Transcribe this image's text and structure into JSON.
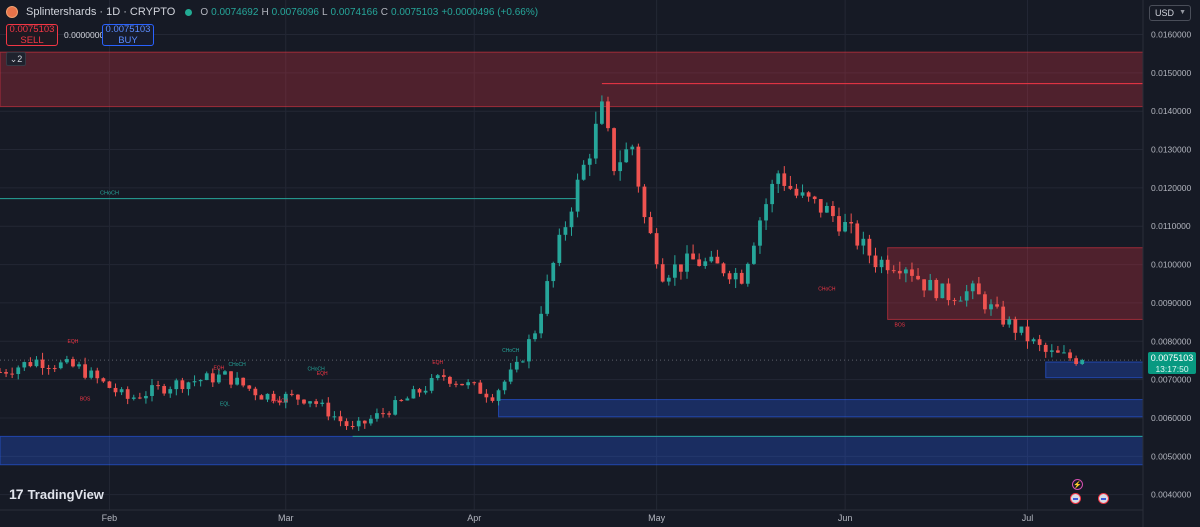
{
  "header": {
    "symbol": "Splintershards · 1D · CRYPTO",
    "ohlc": [
      {
        "key": "O",
        "value": "0.0074692"
      },
      {
        "key": "H",
        "value": "0.0076096"
      },
      {
        "key": "L",
        "value": "0.0074166"
      },
      {
        "key": "C",
        "value": "0.0075103"
      }
    ],
    "change": "+0.0000496 (+0.66%)",
    "sell_price": "0.0075103",
    "sell_label": "SELL",
    "spread": "0.0000000",
    "buy_price": "0.0075103",
    "buy_label": "BUY",
    "indicator_count": "2",
    "currency": "USD"
  },
  "branding": {
    "logo_text": "TradingView"
  },
  "last_price": {
    "value": "0.0075103",
    "countdown": "13:17:50"
  },
  "icons": [
    "tradingview-logo-icon",
    "dropdown-caret-icon",
    "collapse-chevron-icon",
    "live-status-dot-icon",
    "lightning-event-icon",
    "us-flag-event-icon"
  ],
  "colors": {
    "background": "#161a25",
    "up": "#26a69a",
    "down": "#ef5350",
    "supply_zone": "#f23645",
    "demand_zone": "#2962ff",
    "last_price_tag": "#089981"
  },
  "chart_data": {
    "type": "candlestick",
    "timeframe": "1D",
    "y_axis": {
      "ticks": [
        "0.0040000",
        "0.0050000",
        "0.0060000",
        "0.0070000",
        "0.0080000",
        "0.0090000",
        "0.0100000",
        "0.0110000",
        "0.0120000",
        "0.0130000",
        "0.0140000",
        "0.0150000",
        "0.0160000"
      ],
      "ylim": [
        0.0036,
        0.0169
      ],
      "position": "right"
    },
    "x_axis": {
      "ticks": [
        {
          "label": "Feb",
          "date": "2024-02-01"
        },
        {
          "label": "Mar",
          "date": "2024-03-01"
        },
        {
          "label": "Apr",
          "date": "2024-04-01"
        },
        {
          "label": "May",
          "date": "2024-05-01"
        },
        {
          "label": "Jun",
          "date": "2024-06-01"
        },
        {
          "label": "Jul",
          "date": "2024-07-01"
        }
      ],
      "range": [
        "2024-01-14",
        "2024-07-20"
      ]
    },
    "grid": true,
    "legend": "none",
    "anchors": [
      {
        "date": "2024-01-14",
        "close": 0.0072
      },
      {
        "date": "2024-01-20",
        "close": 0.0075
      },
      {
        "date": "2024-01-27",
        "close": 0.0073
      },
      {
        "date": "2024-02-04",
        "close": 0.0065
      },
      {
        "date": "2024-02-12",
        "close": 0.0069
      },
      {
        "date": "2024-02-20",
        "close": 0.0071
      },
      {
        "date": "2024-02-26",
        "close": 0.0066
      },
      {
        "date": "2024-03-05",
        "close": 0.0065
      },
      {
        "date": "2024-03-12",
        "close": 0.0057
      },
      {
        "date": "2024-03-20",
        "close": 0.0064
      },
      {
        "date": "2024-03-27",
        "close": 0.0071
      },
      {
        "date": "2024-04-04",
        "close": 0.0066
      },
      {
        "date": "2024-04-08",
        "close": 0.0073
      },
      {
        "date": "2024-04-11",
        "close": 0.0083
      },
      {
        "date": "2024-04-14",
        "close": 0.01
      },
      {
        "date": "2024-04-17",
        "close": 0.0116
      },
      {
        "date": "2024-04-20",
        "close": 0.013
      },
      {
        "date": "2024-04-22",
        "close": 0.014
      },
      {
        "date": "2024-04-24",
        "close": 0.0126
      },
      {
        "date": "2024-04-27",
        "close": 0.0131
      },
      {
        "date": "2024-04-29",
        "close": 0.0112
      },
      {
        "date": "2024-05-02",
        "close": 0.0098
      },
      {
        "date": "2024-05-07",
        "close": 0.0101
      },
      {
        "date": "2024-05-12",
        "close": 0.0099
      },
      {
        "date": "2024-05-15",
        "close": 0.0097
      },
      {
        "date": "2024-05-18",
        "close": 0.0112
      },
      {
        "date": "2024-05-21",
        "close": 0.0124
      },
      {
        "date": "2024-05-24",
        "close": 0.0118
      },
      {
        "date": "2024-05-29",
        "close": 0.0114
      },
      {
        "date": "2024-06-01",
        "close": 0.011
      },
      {
        "date": "2024-06-06",
        "close": 0.0101
      },
      {
        "date": "2024-06-11",
        "close": 0.01
      },
      {
        "date": "2024-06-14",
        "close": 0.0095
      },
      {
        "date": "2024-06-18",
        "close": 0.0092
      },
      {
        "date": "2024-06-22",
        "close": 0.0093
      },
      {
        "date": "2024-06-26",
        "close": 0.0087
      },
      {
        "date": "2024-06-30",
        "close": 0.0082
      },
      {
        "date": "2024-07-04",
        "close": 0.0077
      },
      {
        "date": "2024-07-07",
        "close": 0.0076
      },
      {
        "date": "2024-07-10",
        "close": 0.00751
      }
    ],
    "zones": [
      {
        "kind": "supply",
        "start": "2024-01-14",
        "end": "2024-07-20",
        "low": 0.01412,
        "high": 0.01554
      },
      {
        "kind": "supply",
        "start": "2024-06-08",
        "end": "2024-07-20",
        "low": 0.00857,
        "high": 0.01044
      },
      {
        "kind": "demand",
        "start": "2024-04-05",
        "end": "2024-07-20",
        "low": 0.00603,
        "high": 0.00648
      },
      {
        "kind": "demand",
        "start": "2024-01-14",
        "end": "2024-07-20",
        "low": 0.00478,
        "high": 0.00552
      },
      {
        "kind": "demand",
        "start": "2024-07-04",
        "end": "2024-07-20",
        "low": 0.00705,
        "high": 0.00746
      }
    ],
    "levels": [
      {
        "price": 0.01172,
        "start": "2024-01-14",
        "end": "2024-04-18",
        "label": "CHoCH",
        "color": "#26a69a"
      },
      {
        "price": 0.01472,
        "start": "2024-04-22",
        "end": "2024-07-20",
        "label": "",
        "color": "#f23645"
      },
      {
        "price": 0.00552,
        "start": "2024-03-12",
        "end": "2024-07-20",
        "label": "",
        "color": "#26a69a"
      },
      {
        "price": 0.00751,
        "start": "2024-01-14",
        "end": "2024-07-20",
        "label": "",
        "color": "#5d606b",
        "dotted": true
      }
    ],
    "annotations": [
      {
        "text": "EQH",
        "date": "2024-01-26",
        "price": 0.00796,
        "color": "#f23645"
      },
      {
        "text": "BOS",
        "date": "2024-01-28",
        "price": 0.00646,
        "color": "#f23645"
      },
      {
        "text": "EQH",
        "date": "2024-02-19",
        "price": 0.00727,
        "color": "#f23645"
      },
      {
        "text": "CHoCH",
        "date": "2024-02-22",
        "price": 0.00735,
        "color": "#26a69a"
      },
      {
        "text": "EQL",
        "date": "2024-02-20",
        "price": 0.00632,
        "color": "#26a69a"
      },
      {
        "text": "CHoCH",
        "date": "2024-02-29",
        "price": 0.0064,
        "color": "#f23645"
      },
      {
        "text": "CHoCH",
        "date": "2024-03-06",
        "price": 0.00724,
        "color": "#26a69a"
      },
      {
        "text": "EQH",
        "date": "2024-03-07",
        "price": 0.00712,
        "color": "#f23645"
      },
      {
        "text": "EQH",
        "date": "2024-03-26",
        "price": 0.00741,
        "color": "#f23645"
      },
      {
        "text": "CHoCH",
        "date": "2024-04-07",
        "price": 0.00772,
        "color": "#26a69a"
      },
      {
        "text": "CHoCH",
        "date": "2024-05-29",
        "price": 0.00932,
        "color": "#f23645"
      },
      {
        "text": "BOS",
        "date": "2024-06-10",
        "price": 0.00838,
        "color": "#f23645"
      }
    ]
  }
}
